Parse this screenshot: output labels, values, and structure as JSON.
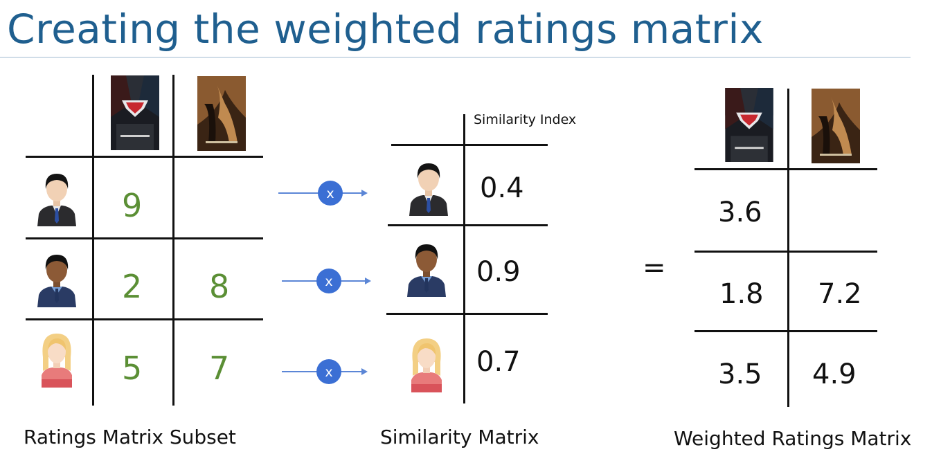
{
  "title": "Creating the weighted ratings matrix",
  "ratings_matrix": {
    "caption": "Ratings Matrix Subset",
    "rows": [
      {
        "user": "man-light",
        "ratings": [
          "9",
          ""
        ]
      },
      {
        "user": "man-dark",
        "ratings": [
          "2",
          "8"
        ]
      },
      {
        "user": "woman-blonde",
        "ratings": [
          "5",
          "7"
        ]
      }
    ]
  },
  "operator_symbol": "x",
  "similarity_matrix": {
    "caption": "Similarity Matrix",
    "header": "Similarity Index",
    "values": [
      "0.4",
      "0.9",
      "0.7"
    ]
  },
  "equals_symbol": "=",
  "weighted_matrix": {
    "caption": "Weighted Ratings Matrix",
    "rows": [
      [
        "3.6",
        ""
      ],
      [
        "1.8",
        "7.2"
      ],
      [
        "3.5",
        "4.9"
      ]
    ]
  },
  "colors": {
    "title": "#1f5f8f",
    "rating_text": "#5b8f35",
    "operator_circle": "#3b6fd4",
    "arrow": "#5b86d6"
  }
}
